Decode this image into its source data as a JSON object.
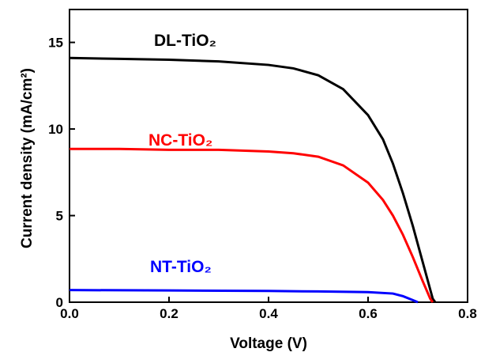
{
  "chart_data": {
    "type": "line",
    "xlabel": "Voltage (V)",
    "ylabel": "Current density (mA/cm²)",
    "xlim": [
      0,
      0.8
    ],
    "ylim": [
      0,
      16.9
    ],
    "xticks": [
      {
        "value": 0,
        "label": "0.0"
      },
      {
        "value": 0.2,
        "label": "0.2"
      },
      {
        "value": 0.4,
        "label": "0.4"
      },
      {
        "value": 0.6,
        "label": "0.6"
      },
      {
        "value": 0.8,
        "label": "0.8"
      }
    ],
    "yticks": [
      0,
      5,
      10,
      15
    ],
    "series": [
      {
        "name": "DL-TiO₂",
        "color": "#000000",
        "x": [
          0,
          0.1,
          0.2,
          0.3,
          0.4,
          0.45,
          0.5,
          0.55,
          0.6,
          0.63,
          0.65,
          0.67,
          0.69,
          0.71,
          0.73,
          0.735
        ],
        "values": [
          14.1,
          14.05,
          14.0,
          13.9,
          13.7,
          13.5,
          13.1,
          12.3,
          10.8,
          9.4,
          8.0,
          6.3,
          4.4,
          2.3,
          0.2,
          0
        ]
      },
      {
        "name": "NC-TiO₂",
        "color": "#ff0000",
        "x": [
          0,
          0.1,
          0.2,
          0.3,
          0.4,
          0.45,
          0.5,
          0.55,
          0.6,
          0.63,
          0.65,
          0.67,
          0.69,
          0.71,
          0.725,
          0.73
        ],
        "values": [
          8.85,
          8.85,
          8.8,
          8.8,
          8.7,
          8.6,
          8.4,
          7.9,
          6.9,
          5.9,
          5.0,
          3.9,
          2.6,
          1.2,
          0.2,
          0
        ]
      },
      {
        "name": "NT-TiO₂",
        "color": "#0000ff",
        "x": [
          0,
          0.2,
          0.4,
          0.5,
          0.6,
          0.65,
          0.67,
          0.69,
          0.7
        ],
        "values": [
          0.7,
          0.68,
          0.65,
          0.62,
          0.58,
          0.5,
          0.35,
          0.12,
          0
        ]
      }
    ]
  }
}
